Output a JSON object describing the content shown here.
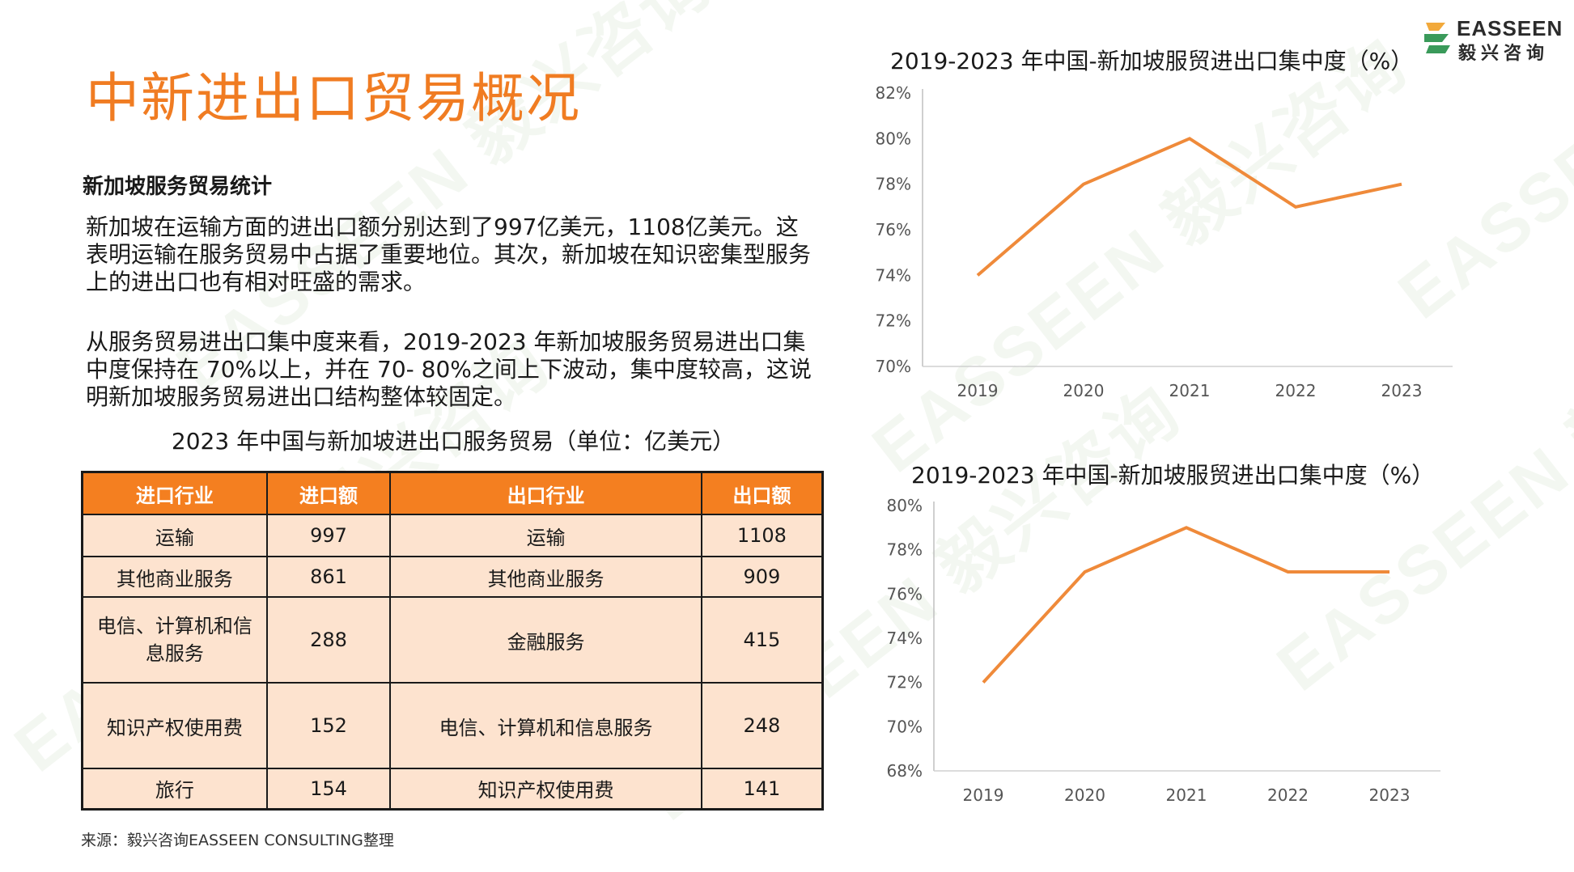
{
  "logo": {
    "en": "EASSEEN",
    "cn": "毅兴咨询"
  },
  "watermark": "EASSEEN 毅兴咨询",
  "page_title": "中新进出口贸易概况",
  "section_heading": "新加坡服务贸易统计",
  "paragraphs": [
    "新加坡在运输方面的进出口额分别达到了997亿美元，1108亿美元。这表明运输在服务贸易中占据了重要地位。其次，新加坡在知识密集型服务上的进出口也有相对旺盛的需求。",
    "从服务贸易进出口集中度来看，2019-2023 年新加坡服务贸易进出口集中度保持在 70%以上，并在 70- 80%之间上下波动，集中度较高，这说明新加坡服务贸易进出口结构整体较固定。"
  ],
  "table": {
    "title": "2023 年中国与新加坡进出口服务贸易（单位：亿美元）",
    "headers": [
      "进口行业",
      "进口额",
      "出口行业",
      "出口额"
    ],
    "rows": [
      [
        "运输",
        "997",
        "运输",
        "1108"
      ],
      [
        "其他商业服务",
        "861",
        "其他商业服务",
        "909"
      ],
      [
        "电信、计算机和信息服务",
        "288",
        "金融服务",
        "415"
      ],
      [
        "知识产权使用费",
        "152",
        "电信、计算机和信息服务",
        "248"
      ],
      [
        "旅行",
        "154",
        "知识产权使用费",
        "141"
      ]
    ]
  },
  "source": "来源：毅兴咨询EASSEEN CONSULTING整理",
  "colors": {
    "accent": "#f07c22",
    "line": "#ef8a3a",
    "table_header": "#f47f20",
    "table_cell": "#fde3cf"
  },
  "chart_data": [
    {
      "type": "line",
      "title": "2019-2023 年中国-新加坡服贸进出口集中度（%）",
      "categories": [
        "2019",
        "2020",
        "2021",
        "2022",
        "2023"
      ],
      "series": [
        {
          "values": [
            74,
            78,
            80,
            77,
            78
          ]
        }
      ],
      "ylim": [
        70,
        82
      ],
      "yticks": [
        70,
        72,
        74,
        76,
        78,
        80,
        82
      ],
      "ytick_labels": [
        "70%",
        "72%",
        "74%",
        "76%",
        "78%",
        "80%",
        "82%"
      ],
      "grid": false,
      "legend": "none"
    },
    {
      "type": "line",
      "title": "2019-2023 年中国-新加坡服贸进出口集中度（%）",
      "categories": [
        "2019",
        "2020",
        "2021",
        "2022",
        "2023"
      ],
      "series": [
        {
          "values": [
            72,
            77,
            79,
            77,
            77
          ]
        }
      ],
      "ylim": [
        68,
        80
      ],
      "yticks": [
        68,
        70,
        72,
        74,
        76,
        78,
        80
      ],
      "ytick_labels": [
        "68%",
        "70%",
        "72%",
        "74%",
        "76%",
        "78%",
        "80%"
      ],
      "grid": false,
      "legend": "none"
    }
  ]
}
